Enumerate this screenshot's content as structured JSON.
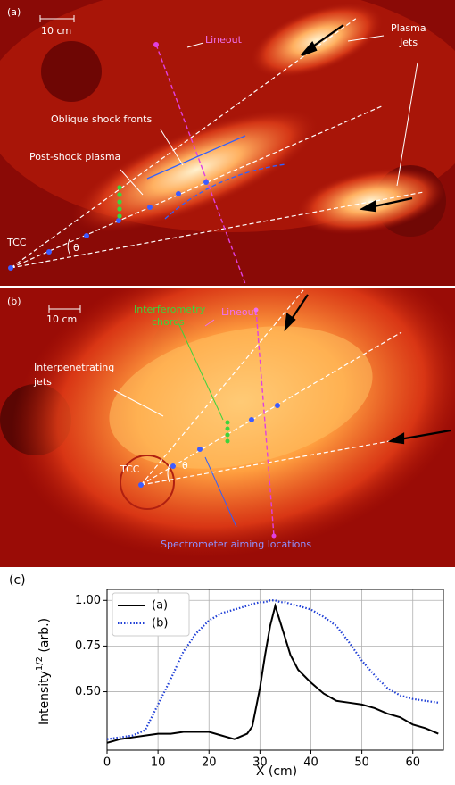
{
  "panel_a": {
    "label": "(a)",
    "scale": "10 cm",
    "lineout": "Lineout",
    "plasma_jets": [
      "Plasma",
      "Jets"
    ],
    "oblique": "Oblique shock fronts",
    "post_shock": "Post-shock plasma",
    "tcc": "TCC",
    "theta": "θ"
  },
  "panel_b": {
    "label": "(b)",
    "scale": "10 cm",
    "lineout": "Lineout",
    "interferometry": [
      "Interferometry",
      "chords"
    ],
    "interpenetrating": [
      "Interpenetrating",
      "jets"
    ],
    "tcc": "TCC",
    "theta": "θ",
    "spectrometer": "Spectrometer aiming locations"
  },
  "chart_data": {
    "type": "line",
    "panel_label": "(c)",
    "xlabel": "X (cm)",
    "ylabel": [
      "Intensity",
      "1/2",
      " (arb.)"
    ],
    "x": [
      0,
      2.5,
      5,
      7.5,
      10,
      12.5,
      15,
      17.5,
      20,
      22.5,
      25,
      27.5,
      28.5,
      30,
      31,
      32,
      33,
      34,
      35,
      36,
      37.5,
      40,
      42.5,
      45,
      47.5,
      50,
      52.5,
      55,
      57.5,
      60,
      62.5,
      65
    ],
    "series": [
      {
        "name": "(a)",
        "color": "#000000",
        "style": "solid",
        "values": [
          0.22,
          0.24,
          0.25,
          0.26,
          0.27,
          0.27,
          0.28,
          0.28,
          0.28,
          0.26,
          0.24,
          0.27,
          0.31,
          0.52,
          0.7,
          0.86,
          0.97,
          0.88,
          0.79,
          0.7,
          0.62,
          0.55,
          0.49,
          0.45,
          0.44,
          0.43,
          0.41,
          0.38,
          0.36,
          0.32,
          0.3,
          0.27
        ]
      },
      {
        "name": "(b)",
        "color": "#1f3fd6",
        "style": "dotted",
        "values": [
          0.24,
          0.25,
          0.26,
          0.29,
          0.43,
          0.57,
          0.72,
          0.82,
          0.89,
          0.93,
          0.95,
          0.97,
          0.98,
          0.99,
          0.99,
          1.0,
          1.0,
          0.99,
          0.99,
          0.98,
          0.97,
          0.95,
          0.91,
          0.86,
          0.77,
          0.67,
          0.59,
          0.52,
          0.48,
          0.46,
          0.45,
          0.44
        ]
      }
    ],
    "xlim": [
      0,
      66
    ],
    "ylim": [
      0.18,
      1.06
    ],
    "xticks": [
      0,
      10,
      20,
      30,
      40,
      50,
      60
    ],
    "yticks": [
      {
        "value": 0.5,
        "label": "0.50"
      },
      {
        "value": 0.75,
        "label": "0.75"
      },
      {
        "value": 1.0,
        "label": "1.00"
      }
    ],
    "grid": true,
    "legend": "upper left"
  }
}
